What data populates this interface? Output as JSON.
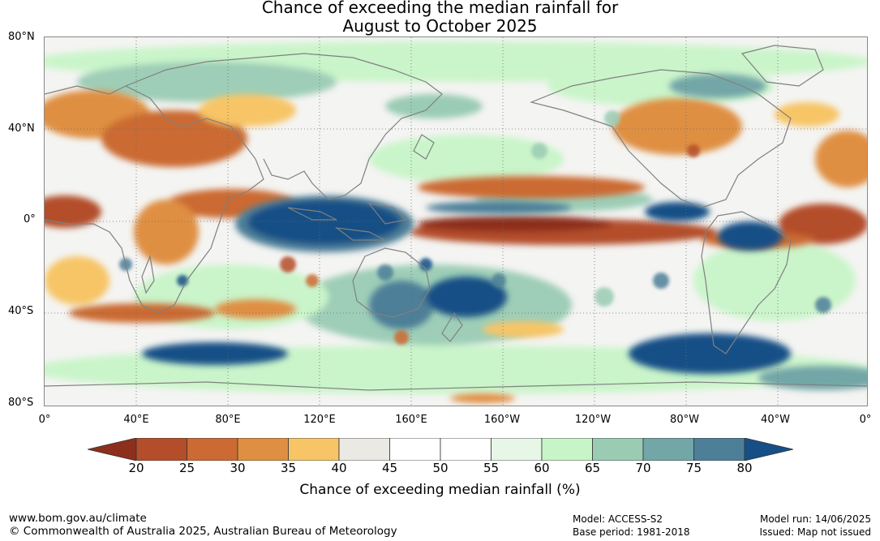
{
  "title": {
    "line1": "Chance of exceeding the median rainfall for",
    "line2": "August to October 2025"
  },
  "map": {
    "lat_labels": [
      "80°N",
      "40°N",
      "0°",
      "40°S",
      "80°S"
    ],
    "lon_labels": [
      "0°",
      "40°E",
      "80°E",
      "120°E",
      "160°E",
      "160°W",
      "120°W",
      "80°W",
      "40°W",
      "0°"
    ],
    "land_outline_color": "#808080",
    "grid_color": "#6b6b6b"
  },
  "colorbar": {
    "title": "Chance of exceeding median rainfall (%)",
    "ticks": [
      "20",
      "25",
      "30",
      "35",
      "40",
      "45",
      "50",
      "55",
      "60",
      "65",
      "70",
      "75",
      "80"
    ],
    "low_extend_color": "#8d2f1c",
    "high_extend_color": "#164f86",
    "colors": [
      "#b44d2a",
      "#cb6a33",
      "#df8f42",
      "#f7c566",
      "#ebe9e4",
      "#ffffff",
      "#ffffff",
      "#e8f6e8",
      "#c8f5c8",
      "#9accb4",
      "#73a6a7",
      "#4d7f98"
    ]
  },
  "footer": {
    "url": "www.bom.gov.au/climate",
    "copyright": "© Commonwealth of Australia 2025, Australian Bureau of Meteorology",
    "model": "Model: ACCESS-S2",
    "base_period": "Base period: 1981-2018",
    "model_run": "Model run: 14/06/2025",
    "issued": "Issued: Map not issued"
  }
}
